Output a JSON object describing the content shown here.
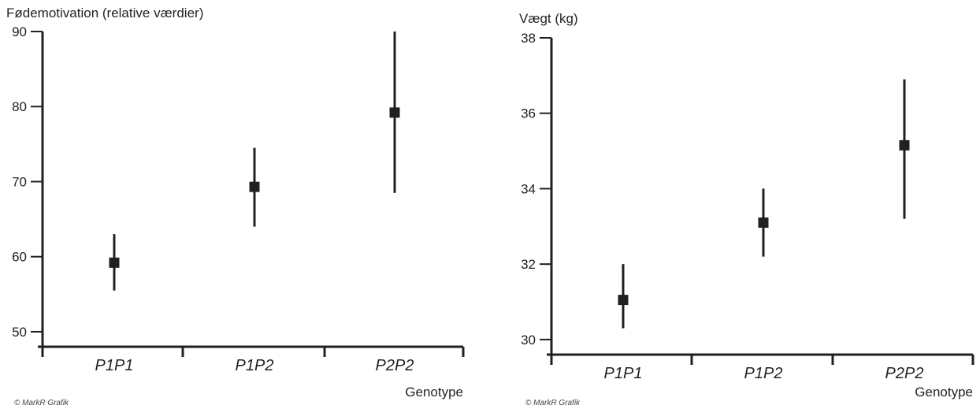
{
  "colors": {
    "ink": "#231f20",
    "background": "#ffffff"
  },
  "chart_data": [
    {
      "type": "scatter",
      "title": "",
      "ylabel": "Fødemotivation (relative værdier)",
      "xlabel": "Genotype",
      "categories": [
        "P1P1",
        "P1P2",
        "P2P2"
      ],
      "ylim": [
        48,
        90
      ],
      "yticks": [
        50,
        60,
        70,
        80,
        90
      ],
      "yticklabels": [
        "50",
        "60",
        "70",
        "80",
        "90"
      ],
      "values": [
        59.2,
        69.3,
        79.2
      ],
      "error_low": [
        55.5,
        64.0,
        68.5
      ],
      "error_high": [
        63.0,
        74.5,
        90.0
      ],
      "credit": "© MarkR Grafik"
    },
    {
      "type": "scatter",
      "title": "",
      "ylabel": "Vægt (kg)",
      "xlabel": "Genotype",
      "categories": [
        "P1P1",
        "P1P2",
        "P2P2"
      ],
      "ylim": [
        29.6,
        38
      ],
      "yticks": [
        30,
        32,
        34,
        36,
        38
      ],
      "yticklabels": [
        "30",
        "32",
        "34",
        "36",
        "38"
      ],
      "values": [
        31.05,
        33.1,
        35.15
      ],
      "error_low": [
        30.3,
        32.2,
        33.2
      ],
      "error_high": [
        32.0,
        34.0,
        36.9
      ],
      "credit": "© MarkR Grafik"
    }
  ]
}
